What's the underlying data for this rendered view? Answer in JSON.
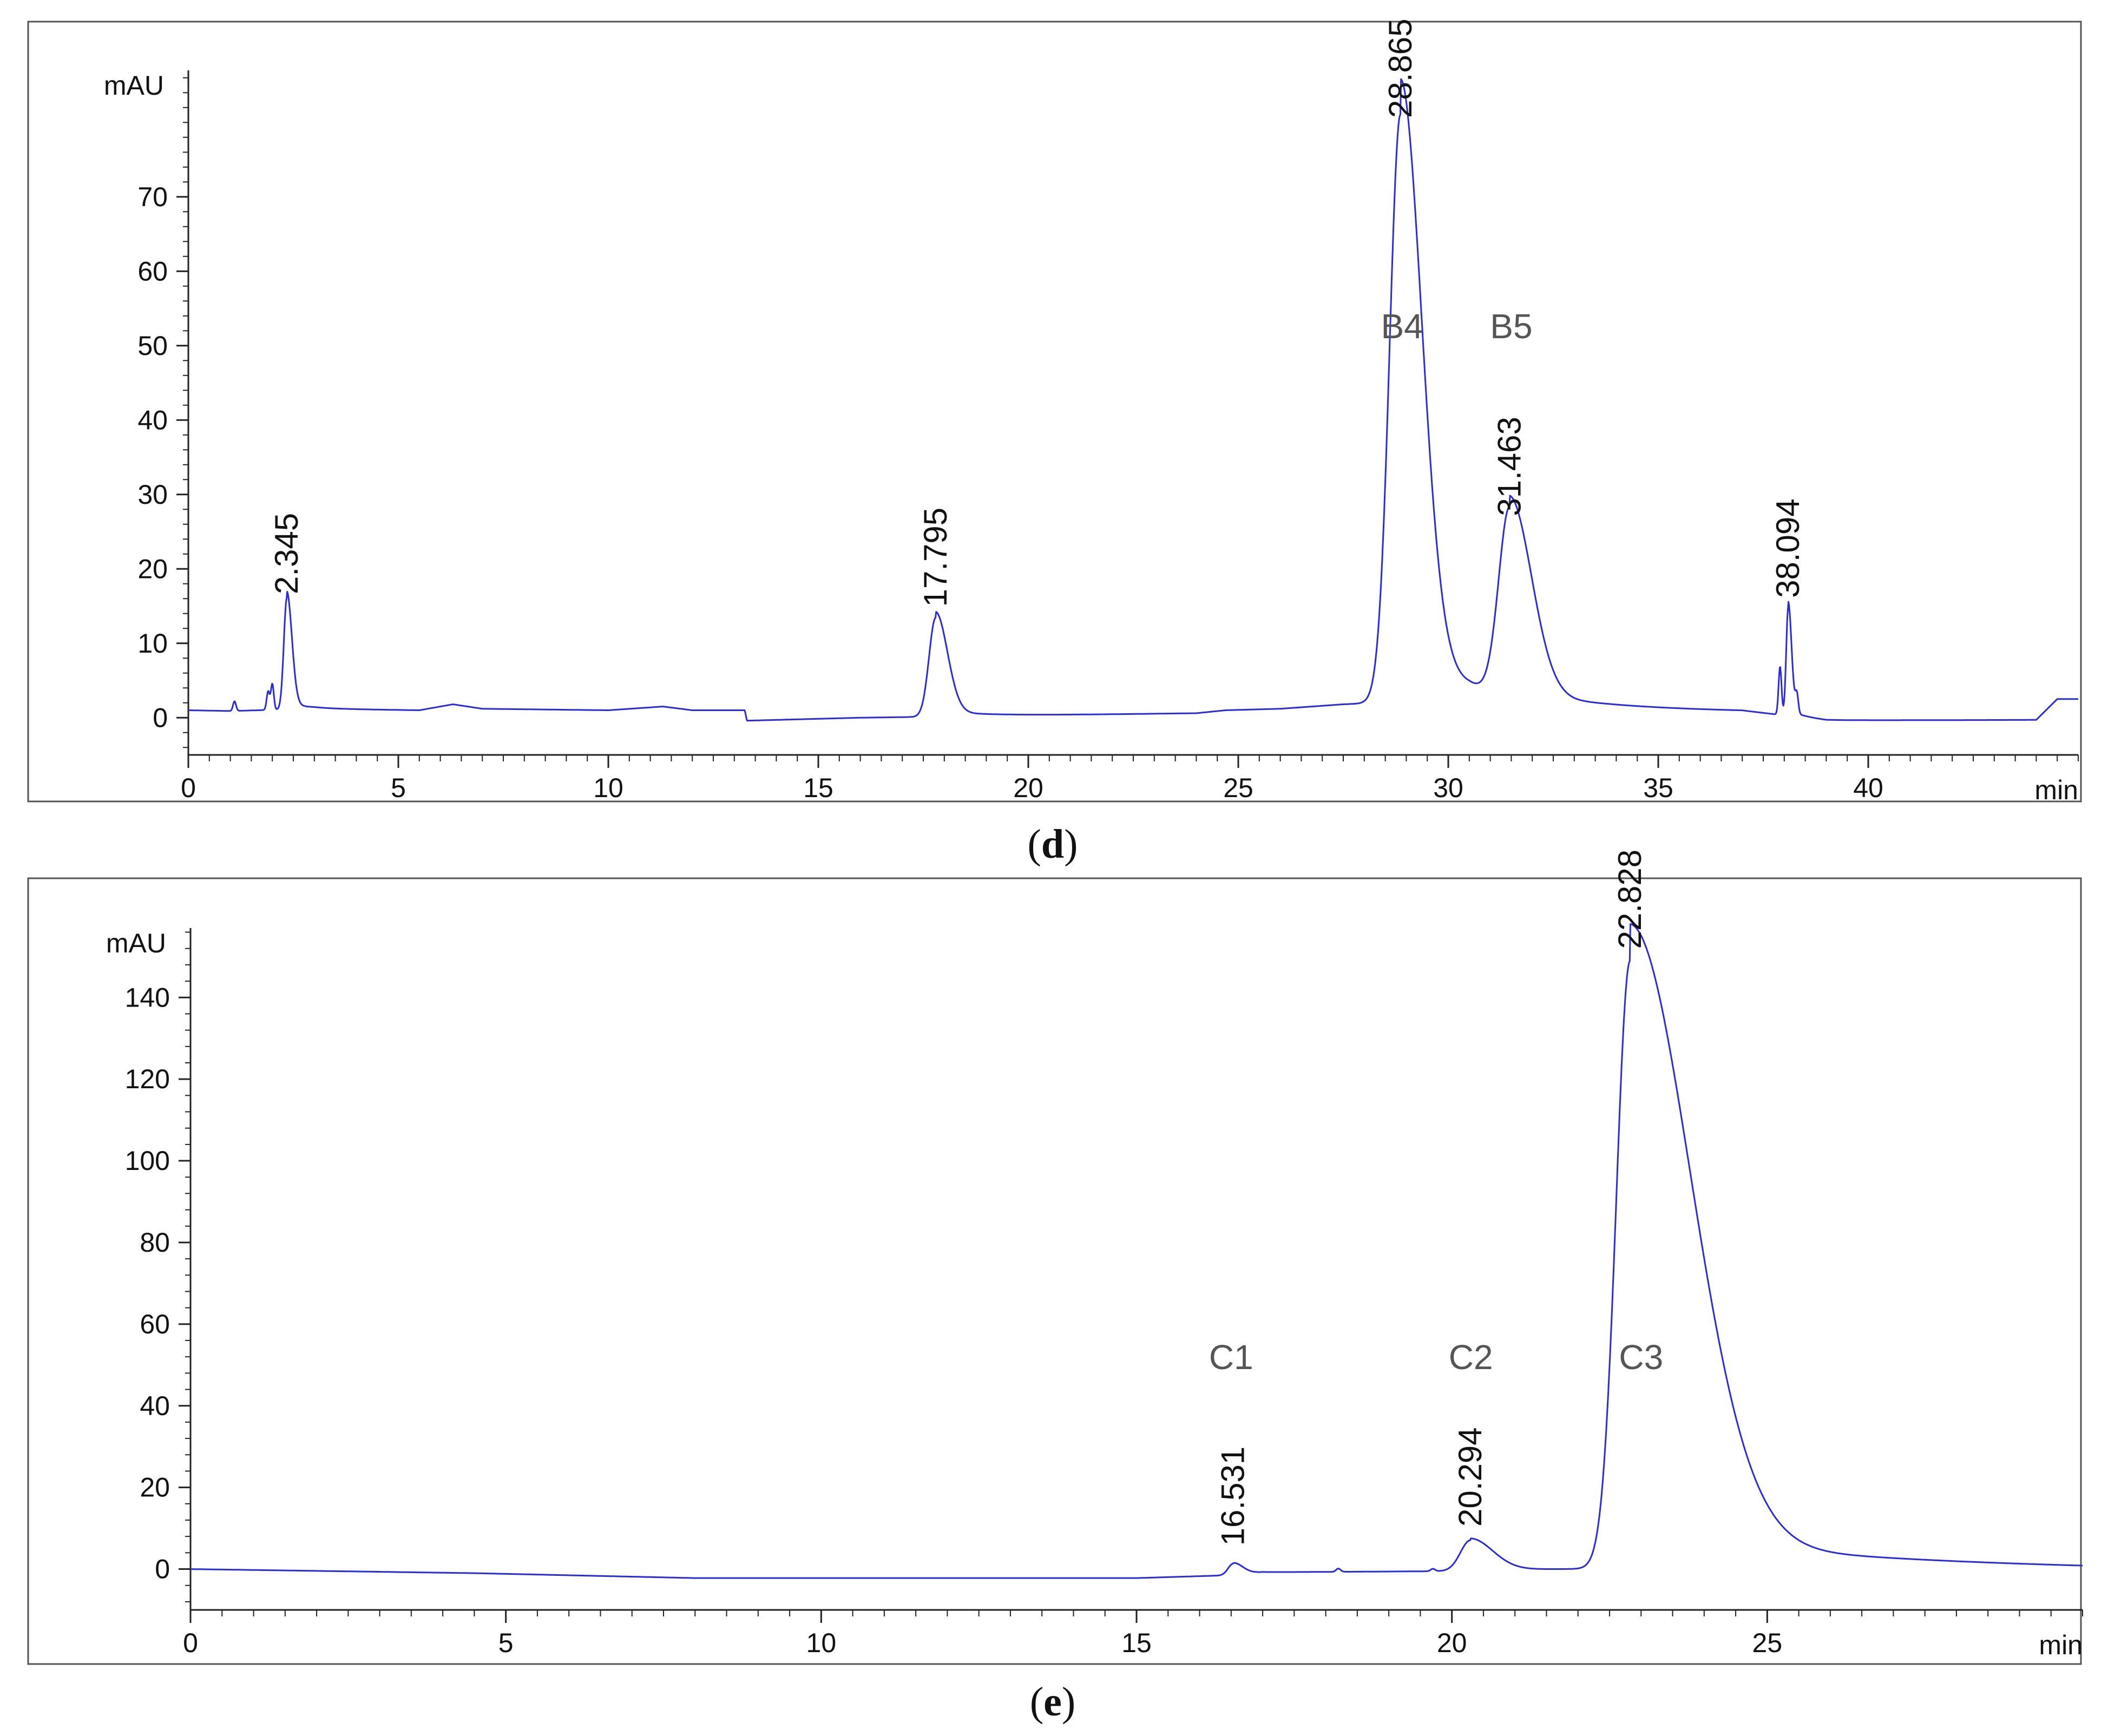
{
  "trace_color": "#2b2bd9",
  "chart_data": [
    {
      "type": "line",
      "caption": "d",
      "xlabel": "min",
      "ylabel": "mAU",
      "xlim": [
        0,
        45
      ],
      "ylim": [
        -5,
        87
      ],
      "xticks": [
        0,
        5,
        10,
        15,
        20,
        25,
        30,
        35,
        40
      ],
      "yticks": [
        0,
        10,
        20,
        30,
        40,
        50,
        60,
        70
      ],
      "grid": false,
      "baseline": [
        [
          0,
          1.0
        ],
        [
          1.0,
          0.9
        ],
        [
          3.0,
          1.2
        ],
        [
          5.5,
          1.0
        ],
        [
          6.3,
          1.8
        ],
        [
          7.0,
          1.2
        ],
        [
          10,
          1.0
        ],
        [
          11.3,
          1.5
        ],
        [
          12,
          1.0
        ],
        [
          13.25,
          1.0
        ],
        [
          13.3,
          -0.4
        ],
        [
          16,
          0.0
        ],
        [
          20,
          0.3
        ],
        [
          24,
          0.6
        ],
        [
          24.7,
          1.0
        ],
        [
          26,
          1.2
        ],
        [
          27.5,
          1.8
        ],
        [
          30.5,
          2.5
        ],
        [
          31.5,
          1.5
        ],
        [
          33,
          1.0
        ],
        [
          37,
          0.8
        ],
        [
          39,
          -0.4
        ],
        [
          44,
          -0.3
        ],
        [
          44.5,
          2.5
        ],
        [
          45,
          2.5
        ]
      ],
      "peaks": [
        {
          "rt": 2.345,
          "height": 15.0,
          "width": 0.09,
          "tail": 0.12,
          "label": "2.345"
        },
        {
          "rt": 17.795,
          "height": 13.3,
          "width": 0.2,
          "tail": 0.28,
          "label": "17.795"
        },
        {
          "rt": 28.865,
          "height": 79.0,
          "width": 0.33,
          "tail": 0.5,
          "label": "28.865"
        },
        {
          "rt": 31.463,
          "height": 25.5,
          "width": 0.33,
          "tail": 0.52,
          "label": "31.463"
        },
        {
          "rt": 38.094,
          "height": 14.5,
          "width": 0.06,
          "tail": 0.08,
          "label": "38.094"
        }
      ],
      "small_features": [
        [
          1.1,
          1.3
        ],
        [
          1.9,
          2.5
        ],
        [
          2.0,
          3.5
        ],
        [
          37.9,
          6.5
        ],
        [
          38.3,
          2.5
        ]
      ],
      "compound_labels": [
        {
          "text": "B4",
          "x": 28.9,
          "y": 51
        },
        {
          "text": "B5",
          "x": 31.5,
          "y": 51
        }
      ]
    },
    {
      "type": "line",
      "caption": "e",
      "xlabel": "min",
      "ylabel": "mAU",
      "xlim": [
        0,
        30
      ],
      "ylim": [
        -10,
        157
      ],
      "xticks": [
        0,
        5,
        10,
        15,
        20,
        25
      ],
      "yticks": [
        0,
        20,
        40,
        60,
        80,
        100,
        120,
        140
      ],
      "grid": false,
      "baseline": [
        [
          0,
          0
        ],
        [
          4.5,
          -1.0
        ],
        [
          8,
          -2.2
        ],
        [
          15,
          -2.2
        ],
        [
          16.5,
          -1.5
        ],
        [
          17,
          -0.8
        ],
        [
          20,
          -0.5
        ],
        [
          22.5,
          0.0
        ],
        [
          30,
          -0.5
        ]
      ],
      "peaks": [
        {
          "rt": 16.531,
          "height": 2.8,
          "width": 0.1,
          "tail": 0.15,
          "label": "16.531"
        },
        {
          "rt": 20.294,
          "height": 7.5,
          "width": 0.2,
          "tail": 0.35,
          "label": "20.294"
        },
        {
          "rt": 22.828,
          "height": 149.0,
          "width": 0.28,
          "tail": 0.95,
          "label": "22.828"
        }
      ],
      "small_features": [
        [
          18.2,
          0.8
        ],
        [
          19.7,
          0.6
        ]
      ],
      "compound_labels": [
        {
          "text": "C1",
          "x": 16.5,
          "y": 49
        },
        {
          "text": "C2",
          "x": 20.3,
          "y": 49
        },
        {
          "text": "C3",
          "x": 23.0,
          "y": 49
        }
      ]
    }
  ]
}
